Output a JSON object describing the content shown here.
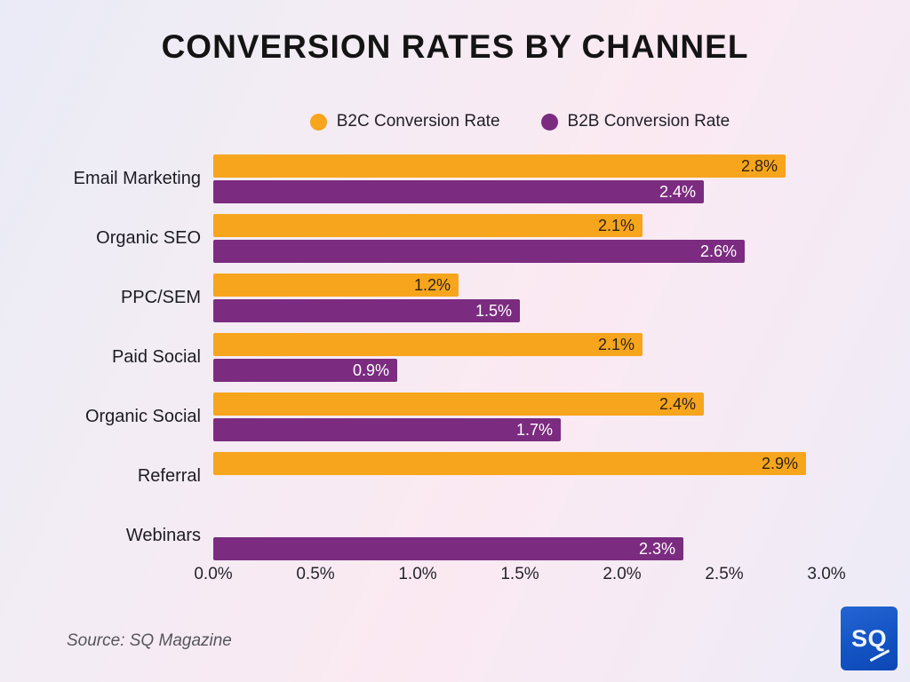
{
  "title": "CONVERSION RATES BY CHANNEL",
  "legend": {
    "items": [
      {
        "label": "B2C Conversion Rate",
        "color": "#F7A51D"
      },
      {
        "label": "B2B Conversion Rate",
        "color": "#7B2C80"
      }
    ]
  },
  "chart_data": {
    "type": "bar",
    "orientation": "horizontal",
    "title": "CONVERSION RATES BY CHANNEL",
    "categories": [
      "Email Marketing",
      "Organic SEO",
      "PPC/SEM",
      "Paid Social",
      "Organic Social",
      "Referral",
      "Webinars"
    ],
    "series": [
      {
        "name": "B2C Conversion Rate",
        "color": "#F7A51D",
        "label_color": "#2e2310",
        "values": [
          2.8,
          2.1,
          1.2,
          2.1,
          2.4,
          2.9,
          null
        ],
        "labels": [
          "2.8%",
          "2.1%",
          "1.2%",
          "2.1%",
          "2.4%",
          "2.9%",
          null
        ]
      },
      {
        "name": "B2B Conversion Rate",
        "color": "#7B2C80",
        "label_color": "#ffffff",
        "values": [
          2.4,
          2.6,
          1.5,
          0.9,
          1.7,
          null,
          2.3
        ],
        "labels": [
          "2.4%",
          "2.6%",
          "1.5%",
          "0.9%",
          "1.7%",
          null,
          "2.3%"
        ]
      }
    ],
    "x_ticks": [
      "0.0%",
      "0.5%",
      "1.0%",
      "1.5%",
      "2.0%",
      "2.5%",
      "3.0%"
    ],
    "xlim": [
      0,
      3.0
    ],
    "grid": false,
    "legend_position": "top",
    "data_labels": "inside-end"
  },
  "source": "Source: SQ Magazine",
  "logo": {
    "text": "SQ"
  }
}
